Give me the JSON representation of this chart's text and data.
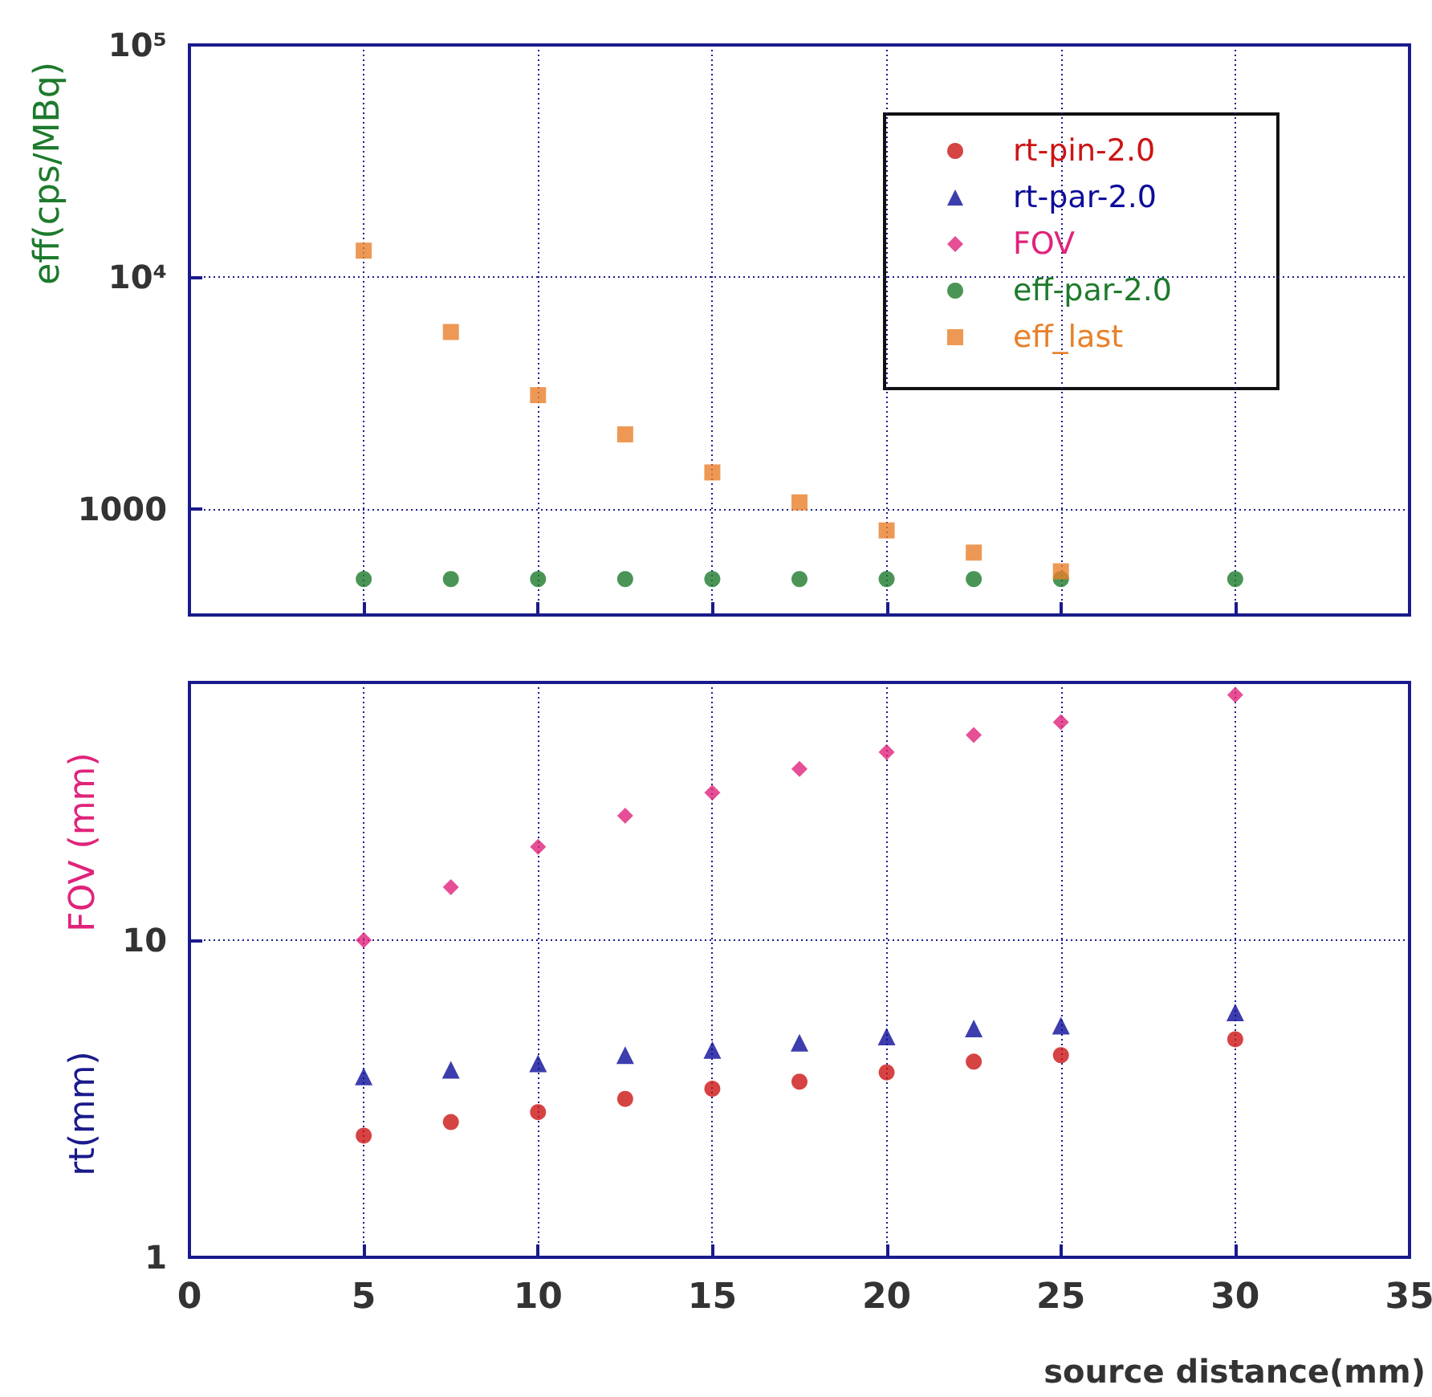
{
  "chart_data": [
    {
      "type": "scatter",
      "ylabel": "eff(cps/MBq)",
      "xlim": [
        0,
        35
      ],
      "xticks": [
        0,
        5,
        10,
        15,
        20,
        25,
        30,
        35
      ],
      "ylim": [
        350,
        100000
      ],
      "yticks": [
        {
          "value": 1000,
          "label": "1000"
        },
        {
          "value": 10000,
          "label": "10⁴"
        },
        {
          "value": 100000,
          "label": "10⁵"
        }
      ],
      "log": "y",
      "grid": true,
      "legend": "top right",
      "tick_labels": "y",
      "x": [
        5,
        7.5,
        10,
        12.5,
        15,
        17.5,
        20,
        22.5,
        25,
        30
      ],
      "series": [
        {
          "name": "eff-par-2.0",
          "color": "#1d7a2c",
          "marker": "circle",
          "values": [
            500,
            500,
            500,
            500,
            500,
            500,
            500,
            500,
            500,
            500
          ]
        },
        {
          "name": "eff_last",
          "color": "#e8802a",
          "marker": "square",
          "values": [
            13000,
            5800,
            3100,
            2100,
            1440,
            1070,
            810,
            650,
            540,
            null
          ]
        }
      ]
    },
    {
      "type": "scatter",
      "ylabel": "rt(mm)",
      "xlabel": "source distance(mm)",
      "annotations": [
        "FOV (mm)"
      ],
      "xlim": [
        0,
        35
      ],
      "xticks": [
        0,
        5,
        10,
        15,
        20,
        25,
        30,
        35
      ],
      "ylim": [
        1,
        65
      ],
      "yticks": [
        1,
        10
      ],
      "log": "y",
      "grid": true,
      "legend": "top right",
      "x": [
        5,
        7.5,
        10,
        12.5,
        15,
        17.5,
        20,
        22.5,
        25,
        30
      ],
      "series": [
        {
          "name": "rt-pin-2.0",
          "color": "#cc1414",
          "marker": "circle",
          "values": [
            2.42,
            2.67,
            2.87,
            3.16,
            3.4,
            3.58,
            3.83,
            4.14,
            4.34,
            4.87
          ]
        },
        {
          "name": "rt-par-2.0",
          "color": "#0c0c9a",
          "marker": "triangle",
          "values": [
            3.72,
            3.9,
            4.09,
            4.34,
            4.51,
            4.75,
            4.97,
            5.27,
            5.38,
            5.92
          ]
        },
        {
          "name": "FOV",
          "color": "#e0237a",
          "marker": "diamond",
          "values": [
            10,
            14.7,
            19.7,
            24.7,
            29.2,
            34.7,
            39.2,
            44.4,
            48.7,
            59.4
          ]
        }
      ]
    }
  ]
}
